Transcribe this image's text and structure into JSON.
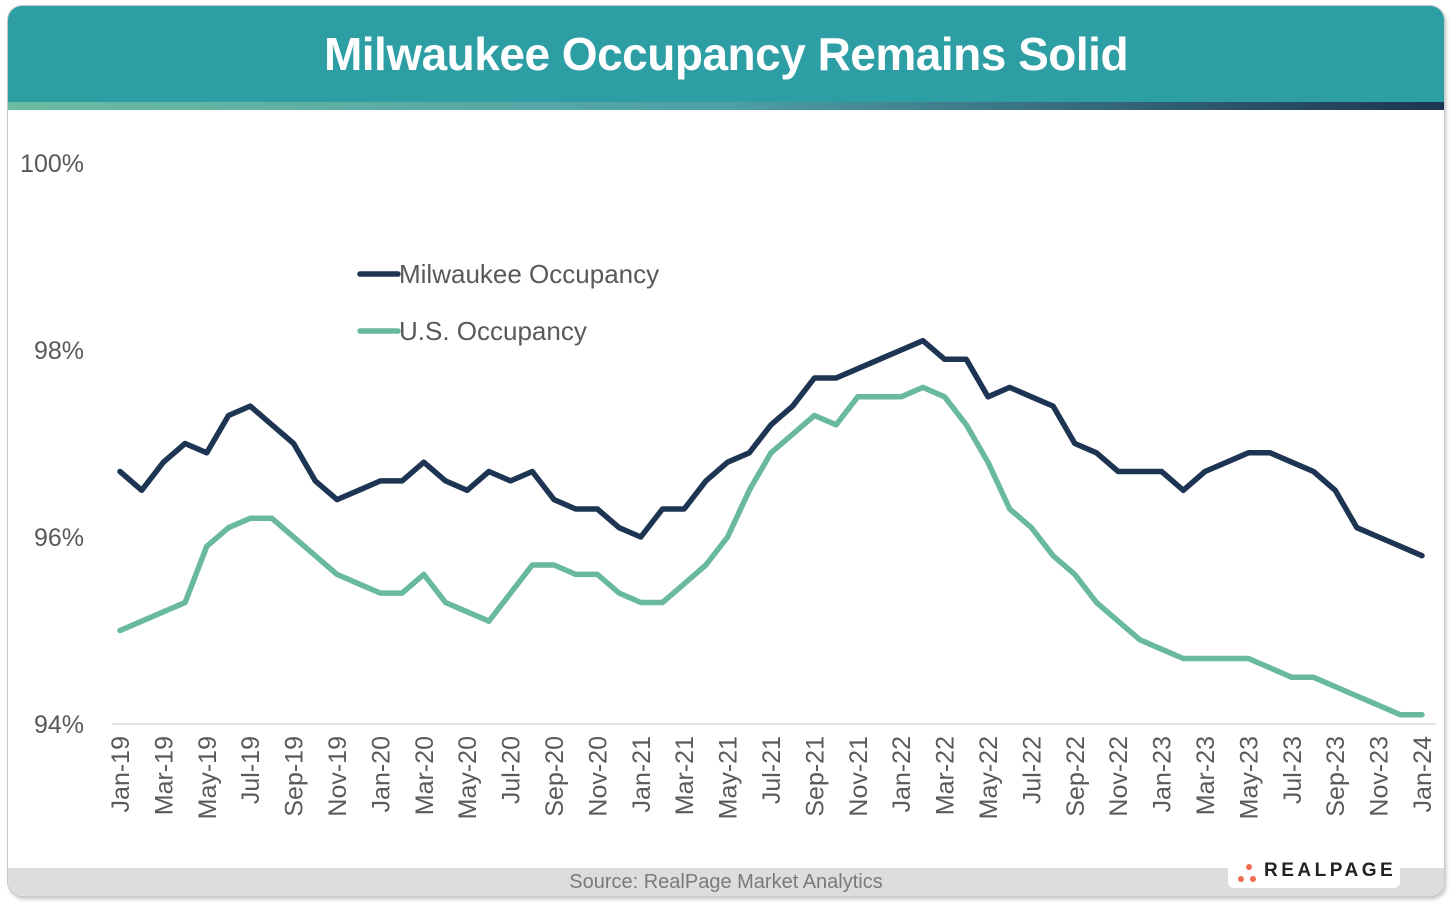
{
  "title": "Milwaukee Occupancy Remains Solid",
  "source": "Source: RealPage Market Analytics",
  "logo": {
    "text": "REALPAGE",
    "icon": "realpage-dots-icon"
  },
  "colors": {
    "header": "#2c9ea4",
    "milwaukee": "#1d3452",
    "us": "#69b9a0",
    "axis_text": "#595959"
  },
  "chart_data": {
    "type": "line",
    "title": "Milwaukee Occupancy Remains Solid",
    "xlabel": "",
    "ylabel": "",
    "ylim": [
      94,
      100
    ],
    "yticks": [
      94,
      96,
      98,
      100
    ],
    "ytick_labels": [
      "94%",
      "96%",
      "98%",
      "100%"
    ],
    "grid": false,
    "legend_position": "upper-left",
    "x": [
      "Jan-19",
      "Feb-19",
      "Mar-19",
      "Apr-19",
      "May-19",
      "Jun-19",
      "Jul-19",
      "Aug-19",
      "Sep-19",
      "Oct-19",
      "Nov-19",
      "Dec-19",
      "Jan-20",
      "Feb-20",
      "Mar-20",
      "Apr-20",
      "May-20",
      "Jun-20",
      "Jul-20",
      "Aug-20",
      "Sep-20",
      "Oct-20",
      "Nov-20",
      "Dec-20",
      "Jan-21",
      "Feb-21",
      "Mar-21",
      "Apr-21",
      "May-21",
      "Jun-21",
      "Jul-21",
      "Aug-21",
      "Sep-21",
      "Oct-21",
      "Nov-21",
      "Dec-21",
      "Jan-22",
      "Feb-22",
      "Mar-22",
      "Apr-22",
      "May-22",
      "Jun-22",
      "Jul-22",
      "Aug-22",
      "Sep-22",
      "Oct-22",
      "Nov-22",
      "Dec-22",
      "Jan-23",
      "Feb-23",
      "Mar-23",
      "Apr-23",
      "May-23",
      "Jun-23",
      "Jul-23",
      "Aug-23",
      "Sep-23",
      "Oct-23",
      "Nov-23",
      "Dec-23",
      "Jan-24"
    ],
    "xtick_labels": [
      "Jan-19",
      "Mar-19",
      "May-19",
      "Jul-19",
      "Sep-19",
      "Nov-19",
      "Jan-20",
      "Mar-20",
      "May-20",
      "Jul-20",
      "Sep-20",
      "Nov-20",
      "Jan-21",
      "Mar-21",
      "May-21",
      "Jul-21",
      "Sep-21",
      "Nov-21",
      "Jan-22",
      "Mar-22",
      "May-22",
      "Jul-22",
      "Sep-22",
      "Nov-22",
      "Jan-23",
      "Mar-23",
      "May-23",
      "Jul-23",
      "Sep-23",
      "Nov-23",
      "Jan-24"
    ],
    "series": [
      {
        "name": "Milwaukee Occupancy",
        "color": "#1d3452",
        "values": [
          96.7,
          96.5,
          96.8,
          97.0,
          96.9,
          97.3,
          97.4,
          97.2,
          97.0,
          96.6,
          96.4,
          96.5,
          96.6,
          96.6,
          96.8,
          96.6,
          96.5,
          96.7,
          96.6,
          96.7,
          96.4,
          96.3,
          96.3,
          96.1,
          96.0,
          96.3,
          96.3,
          96.6,
          96.8,
          96.9,
          97.2,
          97.4,
          97.7,
          97.7,
          97.8,
          97.9,
          98.0,
          98.1,
          97.9,
          97.9,
          97.5,
          97.6,
          97.5,
          97.4,
          97.0,
          96.9,
          96.7,
          96.7,
          96.7,
          96.5,
          96.7,
          96.8,
          96.9,
          96.9,
          96.8,
          96.7,
          96.5,
          96.1,
          96.0,
          95.9,
          95.8
        ]
      },
      {
        "name": "U.S. Occupancy",
        "color": "#69b9a0",
        "values": [
          95.0,
          95.1,
          95.2,
          95.3,
          95.9,
          96.1,
          96.2,
          96.2,
          96.0,
          95.8,
          95.6,
          95.5,
          95.4,
          95.4,
          95.6,
          95.3,
          95.2,
          95.1,
          95.4,
          95.7,
          95.7,
          95.6,
          95.6,
          95.4,
          95.3,
          95.3,
          95.5,
          95.7,
          96.0,
          96.5,
          96.9,
          97.1,
          97.3,
          97.2,
          97.5,
          97.5,
          97.5,
          97.6,
          97.5,
          97.2,
          96.8,
          96.3,
          96.1,
          95.8,
          95.6,
          95.3,
          95.1,
          94.9,
          94.8,
          94.7,
          94.7,
          94.7,
          94.7,
          94.6,
          94.5,
          94.5,
          94.4,
          94.3,
          94.2,
          94.1,
          94.1
        ]
      }
    ]
  }
}
